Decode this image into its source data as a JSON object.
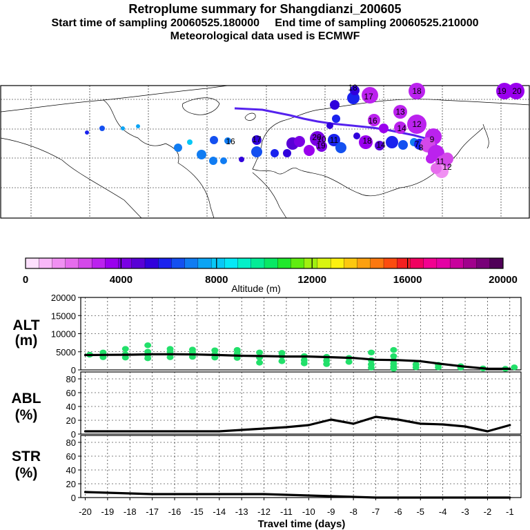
{
  "header": {
    "title": "Retroplume summary for Shangdianzi_200605",
    "start_label": "Start time of sampling 20060525.180000",
    "end_label": "End time of sampling 20060525.210000",
    "met_label": "Meteorological data used is ECMWF"
  },
  "colors": {
    "alt_points": "#22e06a",
    "median_line": "#000000",
    "trajectory": "#5522ee"
  },
  "map": {
    "labels": [
      {
        "text": "18"
      },
      {
        "text": "17"
      },
      {
        "text": "18"
      },
      {
        "text": "19"
      },
      {
        "text": "20"
      },
      {
        "text": "13"
      },
      {
        "text": "12"
      },
      {
        "text": "14"
      },
      {
        "text": "16"
      },
      {
        "text": "9"
      },
      {
        "text": "10"
      },
      {
        "text": "11"
      },
      {
        "text": "20"
      },
      {
        "text": "19"
      },
      {
        "text": "14"
      },
      {
        "text": "18"
      },
      {
        "text": "17"
      },
      {
        "text": "16"
      },
      {
        "text": "7"
      },
      {
        "text": "8"
      },
      {
        "text": "11"
      },
      {
        "text": "12"
      }
    ]
  },
  "colorbar": {
    "ticks": [
      "0",
      "4000",
      "8000",
      "12000",
      "16000",
      "20000"
    ],
    "label": "Altitude (m)",
    "colors": [
      "#fde0fd",
      "#f8b8f8",
      "#f090f2",
      "#e66ced",
      "#d448ea",
      "#bb22ee",
      "#9a00ee",
      "#7a00e4",
      "#5800d6",
      "#3000dc",
      "#1a22ee",
      "#1450f0",
      "#107cf2",
      "#0ca4f4",
      "#08c8f6",
      "#06e8f6",
      "#04f0c8",
      "#04ec96",
      "#08e864",
      "#20e82c",
      "#60ec10",
      "#a0f010",
      "#d8f410",
      "#fcf010",
      "#fcc810",
      "#fca010",
      "#fc7810",
      "#fc4c10",
      "#f42020",
      "#f00060",
      "#f20090",
      "#e400a4",
      "#c8009c",
      "#a0008c",
      "#780078",
      "#500058"
    ]
  },
  "axes_labels": {
    "alt": [
      "ALT",
      "(m)"
    ],
    "abl": [
      "ABL",
      "(%)"
    ],
    "str": [
      "STR",
      "(%)"
    ],
    "xlabel": "Travel time (days)"
  },
  "chart_data": [
    {
      "type": "scatter",
      "panel": "ALT",
      "ylabel": "ALT (m)",
      "ylim": [
        0,
        20000
      ],
      "yticks": [
        "0",
        "5000",
        "10000",
        "15000",
        "20000"
      ],
      "xlim": [
        -20.2,
        -0.5
      ],
      "points": [
        {
          "x": -19.8,
          "y": 4200
        },
        {
          "x": -19.2,
          "y": 3500
        },
        {
          "x": -19.2,
          "y": 4800
        },
        {
          "x": -18.2,
          "y": 3400
        },
        {
          "x": -18.2,
          "y": 4300
        },
        {
          "x": -18.2,
          "y": 5800
        },
        {
          "x": -17.2,
          "y": 3200
        },
        {
          "x": -17.2,
          "y": 4100
        },
        {
          "x": -17.2,
          "y": 5000
        },
        {
          "x": -17.2,
          "y": 6800
        },
        {
          "x": -16.2,
          "y": 3500
        },
        {
          "x": -16.2,
          "y": 5000
        },
        {
          "x": -16.2,
          "y": 5800
        },
        {
          "x": -15.2,
          "y": 3600
        },
        {
          "x": -15.2,
          "y": 4800
        },
        {
          "x": -15.2,
          "y": 5600
        },
        {
          "x": -14.2,
          "y": 3400
        },
        {
          "x": -14.2,
          "y": 4300
        },
        {
          "x": -14.2,
          "y": 5400
        },
        {
          "x": -13.2,
          "y": 3300
        },
        {
          "x": -13.2,
          "y": 4500
        },
        {
          "x": -13.2,
          "y": 5500
        },
        {
          "x": -12.2,
          "y": 2000
        },
        {
          "x": -12.2,
          "y": 3400
        },
        {
          "x": -12.2,
          "y": 4800
        },
        {
          "x": -11.2,
          "y": 2400
        },
        {
          "x": -11.2,
          "y": 3800
        },
        {
          "x": -11.2,
          "y": 4700
        },
        {
          "x": -10.2,
          "y": 1800
        },
        {
          "x": -10.2,
          "y": 2700
        },
        {
          "x": -10.2,
          "y": 3800
        },
        {
          "x": -9.2,
          "y": 1600
        },
        {
          "x": -9.2,
          "y": 2600
        },
        {
          "x": -9.2,
          "y": 3600
        },
        {
          "x": -8.2,
          "y": 2200
        },
        {
          "x": -8.2,
          "y": 3300
        },
        {
          "x": -7.2,
          "y": 600
        },
        {
          "x": -7.2,
          "y": 1500
        },
        {
          "x": -7.2,
          "y": 2700
        },
        {
          "x": -7.2,
          "y": 4800
        },
        {
          "x": -6.2,
          "y": 300
        },
        {
          "x": -6.2,
          "y": 900
        },
        {
          "x": -6.2,
          "y": 1700
        },
        {
          "x": -6.2,
          "y": 2600
        },
        {
          "x": -6.2,
          "y": 3800
        },
        {
          "x": -6.2,
          "y": 5500
        },
        {
          "x": -5.2,
          "y": 700
        },
        {
          "x": -5.2,
          "y": 1500
        },
        {
          "x": -4.2,
          "y": 700
        },
        {
          "x": -4.2,
          "y": 1400
        },
        {
          "x": -3.2,
          "y": 600
        },
        {
          "x": -3.2,
          "y": 1000
        },
        {
          "x": -2.2,
          "y": 400
        },
        {
          "x": -1.2,
          "y": 300
        },
        {
          "x": -0.8,
          "y": 700
        }
      ],
      "median": {
        "x": [
          -20,
          -19,
          -18,
          -17,
          -16,
          -15,
          -14,
          -13,
          -12,
          -11,
          -10,
          -9,
          -8,
          -7,
          -6,
          -5,
          -4,
          -3,
          -2,
          -1
        ],
        "y": [
          4100,
          4150,
          4200,
          4300,
          4300,
          4250,
          4100,
          3900,
          3800,
          3700,
          3700,
          3500,
          3300,
          2800,
          2700,
          2400,
          1600,
          900,
          300,
          300
        ]
      }
    },
    {
      "type": "line",
      "panel": "ABL",
      "ylabel": "ABL (%)",
      "ylim": [
        0,
        90
      ],
      "yticks": [
        "0",
        "20",
        "40",
        "60",
        "80"
      ],
      "xlim": [
        -20.2,
        -0.5
      ],
      "x": [
        -20,
        -19,
        -18,
        -17,
        -16,
        -15,
        -14,
        -13,
        -12,
        -11,
        -10,
        -9,
        -8,
        -7,
        -6,
        -5,
        -4,
        -3,
        -2,
        -1
      ],
      "y": [
        4,
        4,
        4,
        4,
        4,
        4,
        4,
        6,
        8,
        10,
        13,
        21,
        15,
        25,
        21,
        15,
        14,
        11,
        4,
        13
      ]
    },
    {
      "type": "line",
      "panel": "STR",
      "ylabel": "STR (%)",
      "ylim": [
        0,
        90
      ],
      "yticks": [
        "0",
        "20",
        "40",
        "60",
        "80"
      ],
      "xlim": [
        -20.2,
        -0.5
      ],
      "xlabel": "Travel time (days)",
      "xticks": [
        "-20",
        "-19",
        "-18",
        "-17",
        "-16",
        "-15",
        "-14",
        "-13",
        "-12",
        "-11",
        "-10",
        "-9",
        "-8",
        "-7",
        "-6",
        "-5",
        "-4",
        "-3",
        "-2",
        "-1"
      ],
      "x": [
        -20,
        -19,
        -18,
        -17,
        -16,
        -15,
        -14,
        -13,
        -12,
        -11,
        -10,
        -9,
        -8,
        -7,
        -6,
        -5,
        -4,
        -3,
        -2,
        -1
      ],
      "y": [
        8,
        7,
        6,
        5,
        5,
        5,
        5,
        5,
        5,
        4,
        3,
        2,
        1,
        0,
        0,
        0,
        0,
        0,
        0,
        0
      ]
    }
  ]
}
